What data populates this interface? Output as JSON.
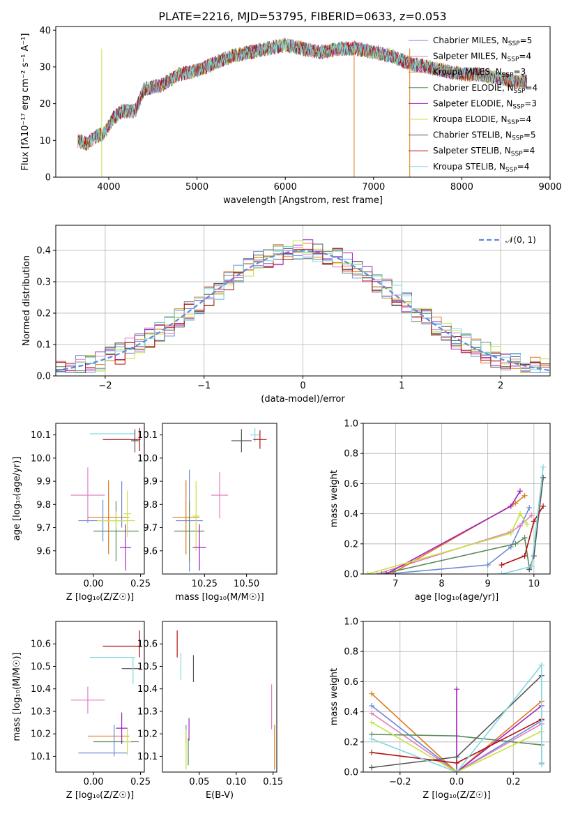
{
  "title": "PLATE=2216, MJD=53795, FIBERID=0633, z=0.053",
  "colors": {
    "Chabrier MILES": "#6c8ad6",
    "Salpeter MILES": "#e07fc0",
    "Kroupa MILES": "#e07a1a",
    "Chabrier ELODIE": "#5a8a5a",
    "Salpeter ELODIE": "#a020c0",
    "Kroupa ELODIE": "#c8e040",
    "Chabrier STELIB": "#555555",
    "Salpeter STELIB": "#b01010",
    "Kroupa STELIB": "#80d8e0"
  },
  "legend": {
    "spectrum": [
      {
        "name": "Chabrier MILES",
        "nssp": "5"
      },
      {
        "name": "Salpeter MILES",
        "nssp": "4"
      },
      {
        "name": "Kroupa MILES",
        "nssp": "3"
      },
      {
        "name": "Chabrier ELODIE",
        "nssp": "4"
      },
      {
        "name": "Salpeter ELODIE",
        "nssp": "3"
      },
      {
        "name": "Kroupa ELODIE",
        "nssp": "4"
      },
      {
        "name": "Chabrier STELIB",
        "nssp": "5"
      },
      {
        "name": "Salpeter STELIB",
        "nssp": "4"
      },
      {
        "name": "Kroupa STELIB",
        "nssp": "4"
      }
    ],
    "normal": "𝒩(0, 1)"
  },
  "chart_data": [
    {
      "id": "spectrum",
      "type": "line",
      "xlabel": "wavelength [Angstrom, rest frame]",
      "ylabel": "Flux [fλ10⁻¹⁷ erg cm⁻² s⁻¹ A⁻¹]",
      "xlim": [
        3400,
        9000
      ],
      "ylim": [
        0,
        41
      ],
      "xticks": [
        4000,
        5000,
        6000,
        7000,
        8000,
        9000
      ],
      "yticks": [
        0,
        10,
        20,
        30,
        40
      ],
      "grid": false,
      "legend_position": "right",
      "continuum": [
        [
          3650,
          10
        ],
        [
          3750,
          9
        ],
        [
          3850,
          11
        ],
        [
          3950,
          12
        ],
        [
          4050,
          16
        ],
        [
          4150,
          18
        ],
        [
          4300,
          18
        ],
        [
          4400,
          24
        ],
        [
          4600,
          25
        ],
        [
          4800,
          28
        ],
        [
          5000,
          29
        ],
        [
          5200,
          31
        ],
        [
          5400,
          33
        ],
        [
          5600,
          34
        ],
        [
          5800,
          35
        ],
        [
          6000,
          36
        ],
        [
          6200,
          35
        ],
        [
          6400,
          34
        ],
        [
          6600,
          35
        ],
        [
          6800,
          35
        ],
        [
          7000,
          34
        ],
        [
          7200,
          33
        ],
        [
          7400,
          31
        ],
        [
          7600,
          30
        ],
        [
          7800,
          29
        ],
        [
          8000,
          28
        ],
        [
          8200,
          28
        ],
        [
          8400,
          27
        ],
        [
          8600,
          26
        ],
        [
          8740,
          26
        ]
      ]
    },
    {
      "id": "residuals",
      "type": "histogram",
      "xlabel": "(data-model)/error",
      "ylabel": "Normed distribution",
      "xlim": [
        -2.5,
        2.5
      ],
      "ylim": [
        0,
        0.48
      ],
      "xticks": [
        -2,
        -1,
        0,
        1,
        2
      ],
      "yticks": [
        0.0,
        0.1,
        0.2,
        0.3,
        0.4
      ],
      "grid": true,
      "legend_position": "top-right"
    },
    {
      "id": "age-Z",
      "type": "scatter",
      "xlabel": "Z [log₁₀(Z/Z☉)]",
      "ylabel": "age  [log₁₀(age/yr)]",
      "xlim": [
        -0.2,
        0.27
      ],
      "ylim": [
        9.5,
        10.15
      ],
      "xticks": [
        0.0,
        0.25
      ],
      "xticklabels": [
        "0.00",
        "0.25"
      ],
      "yticks": [
        9.6,
        9.7,
        9.8,
        9.9,
        10.0,
        10.1
      ],
      "grid": false,
      "points": [
        {
          "series": "Kroupa STELIB",
          "x": 0.1,
          "y": 10.105,
          "xerr": 0.12,
          "yerr": 0.0
        },
        {
          "series": "Salpeter STELIB",
          "x": 0.15,
          "y": 10.08,
          "xerr": 0.1,
          "yerr": 0.0
        },
        {
          "series": "Chabrier STELIB",
          "x": 0.22,
          "y": 10.075,
          "xerr": 0.02,
          "yerr": 0.05
        },
        {
          "series": "Salpeter STELIB",
          "x": 0.245,
          "y": 10.08,
          "xerr": 0.0,
          "yerr": 0.05
        },
        {
          "series": "Salpeter MILES",
          "x": -0.03,
          "y": 9.84,
          "xerr": 0.09,
          "yerr": 0.12
        },
        {
          "series": "Chabrier MILES",
          "x": 0.05,
          "y": 9.73,
          "xerr": 0.13,
          "yerr": 0.09
        },
        {
          "series": "Kroupa MILES",
          "x": 0.08,
          "y": 9.745,
          "xerr": 0.11,
          "yerr": 0.16
        },
        {
          "series": "Chabrier ELODIE",
          "x": 0.12,
          "y": 9.685,
          "xerr": 0.12,
          "yerr": 0.13
        },
        {
          "series": "Kroupa ELODIE",
          "x": 0.18,
          "y": 9.76,
          "xerr": 0.02,
          "yerr": 0.1
        },
        {
          "series": "Salpeter ELODIE",
          "x": 0.17,
          "y": 9.615,
          "xerr": 0.03,
          "yerr": 0.1
        },
        {
          "series": "Chabrier MILES",
          "x": 0.15,
          "y": 9.8,
          "xerr": 0.0,
          "yerr": 0.1
        },
        {
          "series": "Kroupa ELODIE",
          "x": 0.12,
          "y": 9.73,
          "xerr": 0.1,
          "yerr": 0.04
        }
      ]
    },
    {
      "id": "age-mass",
      "type": "scatter",
      "xlabel": "mass [log₁₀(M/M☉)]",
      "ylabel": "",
      "xlim": [
        10.0,
        10.68
      ],
      "ylim": [
        9.5,
        10.15
      ],
      "xticks": [
        10.25,
        10.5
      ],
      "xticklabels": [
        "10.25",
        "10.50"
      ],
      "yticks": [
        9.6,
        9.7,
        9.8,
        9.9,
        10.0,
        10.1
      ],
      "grid": false,
      "points": [
        {
          "series": "Chabrier STELIB",
          "x": 10.47,
          "y": 10.075,
          "xerr": 0.06,
          "yerr": 0.05
        },
        {
          "series": "Kroupa STELIB",
          "x": 10.55,
          "y": 10.1,
          "xerr": 0.03,
          "yerr": 0.03
        },
        {
          "series": "Salpeter STELIB",
          "x": 10.58,
          "y": 10.08,
          "xerr": 0.04,
          "yerr": 0.04
        },
        {
          "series": "Salpeter MILES",
          "x": 10.34,
          "y": 9.84,
          "xerr": 0.05,
          "yerr": 0.1
        },
        {
          "series": "Chabrier MILES",
          "x": 10.16,
          "y": 9.73,
          "xerr": 0.08,
          "yerr": 0.22
        },
        {
          "series": "Kroupa MILES",
          "x": 10.14,
          "y": 9.745,
          "xerr": 0.08,
          "yerr": 0.16
        },
        {
          "series": "Chabrier ELODIE",
          "x": 10.16,
          "y": 9.685,
          "xerr": 0.09,
          "yerr": 0.13
        },
        {
          "series": "Kroupa ELODIE",
          "x": 10.2,
          "y": 9.75,
          "xerr": 0.02,
          "yerr": 0.15
        },
        {
          "series": "Salpeter ELODIE",
          "x": 10.22,
          "y": 9.615,
          "xerr": 0.04,
          "yerr": 0.1
        }
      ]
    },
    {
      "id": "weight-age",
      "type": "line",
      "xlabel": "age  [log₁₀(age/yr)]",
      "ylabel": "mass weight",
      "xlim": [
        6.3,
        10.35
      ],
      "ylim": [
        0,
        1.0
      ],
      "xticks": [
        7,
        8,
        9,
        10
      ],
      "yticks": [
        0.0,
        0.2,
        0.4,
        0.6,
        0.8,
        1.0
      ],
      "grid": true,
      "series": [
        {
          "name": "Chabrier MILES",
          "x": [
            6.8,
            9.0,
            9.5,
            9.9
          ],
          "y": [
            0.0,
            0.06,
            0.18,
            0.44
          ]
        },
        {
          "name": "Salpeter MILES",
          "x": [
            6.6,
            9.5,
            9.7,
            9.95
          ],
          "y": [
            0.0,
            0.28,
            0.32,
            0.39
          ]
        },
        {
          "name": "Kroupa MILES",
          "x": [
            6.9,
            9.6,
            9.8
          ],
          "y": [
            0.0,
            0.47,
            0.52
          ]
        },
        {
          "name": "Chabrier ELODIE",
          "x": [
            6.7,
            9.6,
            9.8,
            9.9
          ],
          "y": [
            0.0,
            0.2,
            0.24,
            0.04
          ]
        },
        {
          "name": "Salpeter ELODIE",
          "x": [
            6.8,
            9.5,
            9.7
          ],
          "y": [
            0.0,
            0.45,
            0.55
          ]
        },
        {
          "name": "Kroupa ELODIE",
          "x": [
            6.4,
            9.5,
            9.7,
            9.85
          ],
          "y": [
            0.0,
            0.27,
            0.4,
            0.33
          ]
        },
        {
          "name": "Chabrier STELIB",
          "x": [
            9.9,
            10.0,
            10.2
          ],
          "y": [
            0.03,
            0.12,
            0.64
          ]
        },
        {
          "name": "Salpeter STELIB",
          "x": [
            9.3,
            9.8,
            10.0,
            10.2
          ],
          "y": [
            0.06,
            0.12,
            0.35,
            0.45
          ]
        },
        {
          "name": "Kroupa STELIB",
          "x": [
            9.3,
            9.95,
            10.2
          ],
          "y": [
            0.0,
            0.05,
            0.71
          ]
        }
      ]
    },
    {
      "id": "mass-Z",
      "type": "scatter",
      "xlabel": "Z [log₁₀(Z/Z☉)]",
      "ylabel": "mass [log₁₀(M/M☉)]",
      "xlim": [
        -0.2,
        0.27
      ],
      "ylim": [
        10.03,
        10.7
      ],
      "xticks": [
        0.0,
        0.25
      ],
      "xticklabels": [
        "0.00",
        "0.25"
      ],
      "yticks": [
        10.1,
        10.2,
        10.3,
        10.4,
        10.5,
        10.6
      ],
      "grid": false,
      "points": [
        {
          "series": "Salpeter STELIB",
          "x": 0.15,
          "y": 10.59,
          "xerr": 0.1,
          "yerr": 0.0
        },
        {
          "series": "Salpeter STELIB",
          "x": 0.245,
          "y": 10.6,
          "xerr": 0.0,
          "yerr": 0.06
        },
        {
          "series": "Kroupa STELIB",
          "x": 0.1,
          "y": 10.54,
          "xerr": 0.12,
          "yerr": 0.0
        },
        {
          "series": "Chabrier STELIB",
          "x": 0.2,
          "y": 10.49,
          "xerr": 0.05,
          "yerr": 0.0
        },
        {
          "series": "Kroupa STELIB",
          "x": 0.21,
          "y": 10.48,
          "xerr": 0.0,
          "yerr": 0.06
        },
        {
          "series": "Salpeter MILES",
          "x": -0.03,
          "y": 10.35,
          "xerr": 0.09,
          "yerr": 0.06
        },
        {
          "series": "Kroupa MILES",
          "x": 0.08,
          "y": 10.19,
          "xerr": 0.11,
          "yerr": 0.0
        },
        {
          "series": "Chabrier MILES",
          "x": 0.05,
          "y": 10.115,
          "xerr": 0.13,
          "yerr": 0.0
        },
        {
          "series": "Chabrier ELODIE",
          "x": 0.12,
          "y": 10.165,
          "xerr": 0.12,
          "yerr": 0.0
        },
        {
          "series": "Kroupa ELODIE",
          "x": 0.18,
          "y": 10.165,
          "xerr": 0.02,
          "yerr": 0.06
        },
        {
          "series": "Salpeter ELODIE",
          "x": 0.15,
          "y": 10.225,
          "xerr": 0.03,
          "yerr": 0.07
        },
        {
          "series": "Chabrier MILES",
          "x": 0.11,
          "y": 10.17,
          "xerr": 0.0,
          "yerr": 0.07
        }
      ]
    },
    {
      "id": "mass-EBV",
      "type": "scatter",
      "xlabel": "E(B-V)",
      "ylabel": "",
      "xlim": [
        0.0,
        0.155
      ],
      "ylim": [
        10.03,
        10.7
      ],
      "xticks": [
        0.05,
        0.1,
        0.15
      ],
      "xticklabels": [
        "0.05",
        "0.10",
        "0.15"
      ],
      "yticks": [
        10.1,
        10.2,
        10.3,
        10.4,
        10.5,
        10.6
      ],
      "grid": false,
      "points": [
        {
          "series": "Salpeter STELIB",
          "x": 0.02,
          "y": 10.6,
          "xerr": 0.0,
          "yerr": 0.06
        },
        {
          "series": "Kroupa STELIB",
          "x": 0.025,
          "y": 10.5,
          "xerr": 0.0,
          "yerr": 0.06
        },
        {
          "series": "Chabrier STELIB",
          "x": 0.042,
          "y": 10.49,
          "xerr": 0.0,
          "yerr": 0.06
        },
        {
          "series": "Salpeter MILES",
          "x": 0.148,
          "y": 10.32,
          "xerr": 0.0,
          "yerr": 0.1
        },
        {
          "series": "Salpeter ELODIE",
          "x": 0.036,
          "y": 10.22,
          "xerr": 0.0,
          "yerr": 0.05
        },
        {
          "series": "Chabrier MILES",
          "x": 0.032,
          "y": 10.2,
          "xerr": 0.0,
          "yerr": 0.04
        },
        {
          "series": "Kroupa ELODIE",
          "x": 0.032,
          "y": 10.13,
          "xerr": 0.0,
          "yerr": 0.09
        },
        {
          "series": "Chabrier ELODIE",
          "x": 0.035,
          "y": 10.12,
          "xerr": 0.0,
          "yerr": 0.06
        },
        {
          "series": "Kroupa MILES",
          "x": 0.152,
          "y": 10.14,
          "xerr": 0.0,
          "yerr": 0.1
        }
      ]
    },
    {
      "id": "weight-Z",
      "type": "line",
      "xlabel": "Z [log₁₀(Z/Z☉)]",
      "ylabel": "mass weight",
      "xlim": [
        -0.33,
        0.33
      ],
      "ylim": [
        0,
        1.0
      ],
      "xticks": [
        -0.2,
        0.0,
        0.2
      ],
      "xticklabels": [
        "−0.2",
        "0.0",
        "0.2"
      ],
      "yticks": [
        0.0,
        0.2,
        0.4,
        0.6,
        0.8,
        1.0
      ],
      "grid": true,
      "series": [
        {
          "name": "Chabrier MILES",
          "x": [
            -0.3,
            0.0,
            0.3,
            0.3
          ],
          "y": [
            0.44,
            0.0,
            0.34,
            0.06
          ]
        },
        {
          "name": "Salpeter MILES",
          "x": [
            -0.3,
            0.0,
            0.3
          ],
          "y": [
            0.39,
            0.0,
            0.32
          ]
        },
        {
          "name": "Kroupa MILES",
          "x": [
            -0.3,
            0.0,
            0.3
          ],
          "y": [
            0.52,
            0.0,
            0.47
          ]
        },
        {
          "name": "Chabrier ELODIE",
          "x": [
            -0.3,
            0.0,
            0.3
          ],
          "y": [
            0.25,
            0.24,
            0.18
          ]
        },
        {
          "name": "Salpeter ELODIE",
          "x": [
            0.0,
            0.0,
            0.3
          ],
          "y": [
            0.55,
            0.0,
            0.44
          ]
        },
        {
          "name": "Kroupa ELODIE",
          "x": [
            -0.3,
            0.0,
            0.3
          ],
          "y": [
            0.33,
            0.0,
            0.27
          ]
        },
        {
          "name": "Chabrier STELIB",
          "x": [
            -0.3,
            0.0,
            0.3
          ],
          "y": [
            0.03,
            0.1,
            0.64
          ]
        },
        {
          "name": "Salpeter STELIB",
          "x": [
            -0.3,
            0.0,
            0.3
          ],
          "y": [
            0.13,
            0.06,
            0.35
          ]
        },
        {
          "name": "Kroupa STELIB",
          "x": [
            -0.3,
            0.0,
            0.3,
            0.3
          ],
          "y": [
            0.22,
            0.0,
            0.71,
            0.05
          ]
        }
      ]
    }
  ]
}
